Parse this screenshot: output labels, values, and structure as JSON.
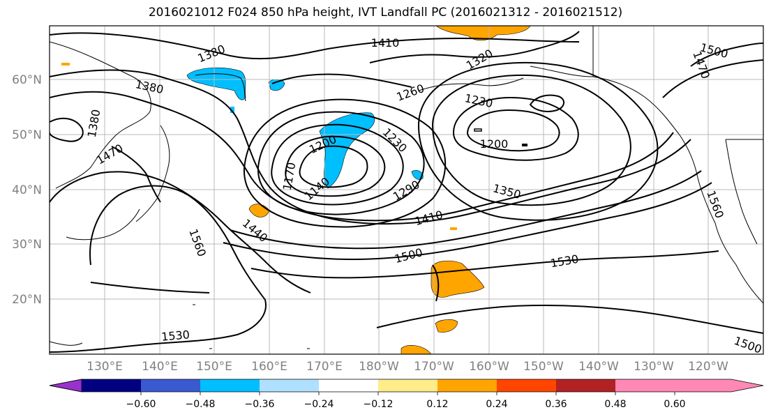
{
  "title": "2016021012 F024 850 hPa height, IVT Landfall PC (2016021312 - 2016021512)",
  "lat_labels": [
    "60°N",
    "50°N",
    "40°N",
    "30°N",
    "20°N"
  ],
  "lon_labels": [
    "130°E",
    "140°E",
    "150°E",
    "160°E",
    "170°E",
    "180°W",
    "170°W",
    "160°W",
    "150°W",
    "140°W",
    "130°W",
    "120°W"
  ],
  "contour_labels": [
    "1380",
    "1410",
    "1320",
    "1500",
    "1470",
    "1380",
    "1260",
    "1230",
    "1380",
    "1200",
    "1200",
    "1230",
    "1470",
    "1170",
    "1140",
    "1290",
    "1350",
    "1560",
    "1440",
    "1410",
    "1560",
    "1500",
    "1530",
    "1530",
    "1500"
  ],
  "colorbar": {
    "ticks": [
      "−0.60",
      "−0.48",
      "−0.36",
      "−0.24",
      "−0.12",
      "0.12",
      "0.24",
      "0.36",
      "0.48",
      "0.60"
    ],
    "colors": [
      "#9932cc",
      "#000080",
      "#3a5bd0",
      "#00bfff",
      "#b0e0ff",
      "#ffffff",
      "#ffec8b",
      "#ffa500",
      "#ff4500",
      "#b22222",
      "#ff88b4"
    ]
  }
}
